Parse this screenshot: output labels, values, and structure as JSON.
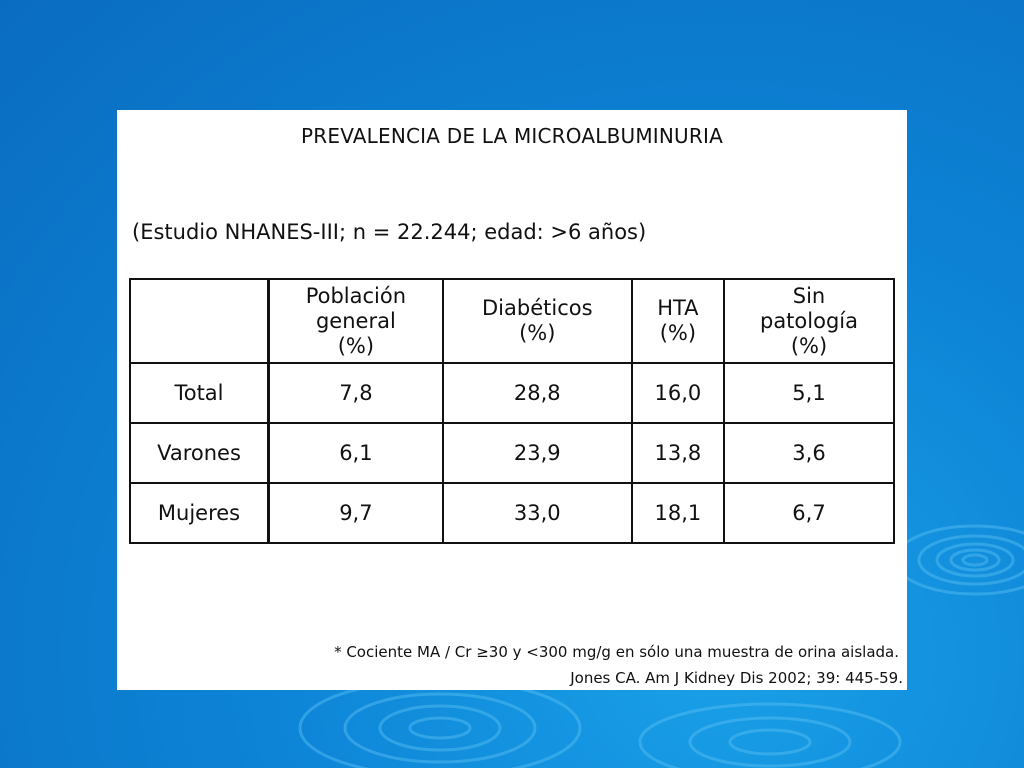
{
  "slide": {
    "title": "PREVALENCIA DE LA MICROALBUMINURIA",
    "subtitle": "(Estudio NHANES-III; n = 22.244; edad: >6 años)",
    "table": {
      "corner": "",
      "columns": [
        [
          "Población",
          "general",
          "(%)"
        ],
        [
          "Diabéticos",
          "(%)"
        ],
        [
          "HTA",
          "(%)"
        ],
        [
          "Sin",
          "patología",
          "(%)"
        ]
      ],
      "rows": [
        {
          "label": "Total",
          "values": [
            "7,8",
            "28,8",
            "16,0",
            "5,1"
          ]
        },
        {
          "label": "Varones",
          "values": [
            "6,1",
            "23,9",
            "13,8",
            "3,6"
          ]
        },
        {
          "label": "Mujeres",
          "values": [
            "9,7",
            "33,0",
            "18,1",
            "6,7"
          ]
        }
      ]
    },
    "footnote": "* Cociente MA / Cr ≥30 y <300 mg/g  en sólo una muestra de orina aislada.",
    "reference": "Jones CA. Am J Kidney Dis 2002; 39: 445-59."
  },
  "colors": {
    "background": "#0d84d6",
    "slide": "#ffffff",
    "text": "#111111"
  }
}
